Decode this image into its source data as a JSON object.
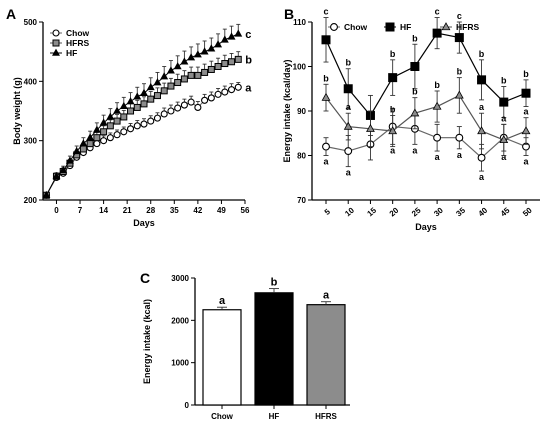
{
  "colors": {
    "chow": "#ffffff",
    "hf": "#000000",
    "hfrs": "#8c8c8c",
    "line_chow": "#666666",
    "line_hf": "#000000",
    "line_hfrs": "#555555"
  },
  "chart_data": [
    {
      "panel": "A",
      "type": "line",
      "xlabel": "Days",
      "ylabel": "Body weight (g)",
      "xlim": [
        -4,
        56
      ],
      "ylim": [
        200,
        500
      ],
      "xticks": [
        0,
        7,
        14,
        21,
        28,
        35,
        42,
        49,
        56
      ],
      "xtick_labels": [
        "0",
        "7",
        "14",
        "21",
        "28",
        "35",
        "42",
        "49",
        "56"
      ],
      "yticks": [
        200,
        300,
        400,
        500
      ],
      "ytick_labels": [
        "200",
        "300",
        "400",
        "500"
      ],
      "legend": [
        "Chow",
        "HFRS",
        "HF"
      ],
      "legend_position": "top-left",
      "x": [
        -3,
        0,
        2,
        4,
        6,
        8,
        10,
        12,
        14,
        16,
        18,
        20,
        22,
        24,
        26,
        28,
        30,
        32,
        34,
        36,
        38,
        40,
        42,
        44,
        46,
        48,
        50,
        52,
        54
      ],
      "series": [
        {
          "name": "Chow",
          "key": "chow",
          "marker": "circle",
          "label": "a",
          "values": [
            208,
            238,
            245,
            258,
            272,
            280,
            288,
            295,
            300,
            305,
            310,
            315,
            320,
            325,
            328,
            333,
            338,
            345,
            350,
            355,
            360,
            365,
            356,
            368,
            372,
            378,
            382,
            386,
            390
          ],
          "err": [
            4,
            5,
            5,
            6,
            6,
            7,
            7,
            7,
            8,
            8,
            8,
            8,
            9,
            9,
            9,
            9,
            9,
            10,
            10,
            10,
            10,
            10,
            10,
            10,
            10,
            10,
            10,
            10,
            8
          ]
        },
        {
          "name": "HFRS",
          "key": "hfrs",
          "marker": "square",
          "label": "b",
          "values": [
            208,
            240,
            248,
            262,
            276,
            286,
            295,
            305,
            315,
            325,
            333,
            340,
            350,
            356,
            362,
            370,
            376,
            384,
            392,
            398,
            404,
            410,
            410,
            415,
            420,
            425,
            430,
            433,
            437
          ],
          "err": [
            4,
            5,
            6,
            6,
            7,
            8,
            8,
            9,
            10,
            10,
            11,
            11,
            12,
            12,
            12,
            13,
            13,
            13,
            13,
            14,
            14,
            14,
            14,
            14,
            14,
            14,
            14,
            14,
            13
          ]
        },
        {
          "name": "HF",
          "key": "hf",
          "marker": "triangle",
          "label": "c",
          "values": [
            208,
            240,
            250,
            266,
            282,
            295,
            305,
            318,
            330,
            340,
            350,
            358,
            366,
            374,
            380,
            390,
            398,
            408,
            418,
            425,
            433,
            440,
            445,
            450,
            455,
            462,
            470,
            475,
            480
          ],
          "err": [
            4,
            6,
            7,
            8,
            9,
            10,
            11,
            12,
            13,
            14,
            14,
            15,
            15,
            16,
            16,
            16,
            17,
            17,
            17,
            18,
            18,
            18,
            18,
            18,
            18,
            18,
            18,
            18,
            16
          ]
        }
      ]
    },
    {
      "panel": "B",
      "type": "line",
      "xlabel": "Days",
      "ylabel": "Energy intake (kcal/day)",
      "ylim": [
        70,
        110
      ],
      "yticks": [
        70,
        80,
        90,
        100,
        110
      ],
      "ytick_labels": [
        "70",
        "80",
        "90",
        "100",
        "110"
      ],
      "categories": [
        "5",
        "10",
        "15",
        "20",
        "25",
        "30",
        "35",
        "40",
        "45",
        "50"
      ],
      "legend": [
        "Chow",
        "HF",
        "HFRS"
      ],
      "legend_position": "top",
      "series": [
        {
          "name": "Chow",
          "key": "chow",
          "marker": "circle",
          "values": [
            82,
            81,
            82.5,
            86.5,
            86,
            84,
            84,
            79.5,
            84,
            82
          ],
          "err": [
            2,
            3.5,
            3.5,
            4,
            3.5,
            3,
            2.5,
            3,
            3,
            2
          ],
          "labels": [
            "a",
            "a",
            "",
            "a",
            "a",
            "a",
            "a",
            "a",
            "a",
            "a"
          ]
        },
        {
          "name": "HF",
          "key": "hf",
          "marker": "square",
          "values": [
            106,
            95,
            89,
            97.5,
            100,
            107.5,
            106.5,
            97,
            92,
            94
          ],
          "err": [
            5,
            4.5,
            4.5,
            4,
            5,
            3.5,
            3.5,
            4.5,
            3.5,
            3
          ],
          "labels": [
            "c",
            "b",
            "",
            "b",
            "b",
            "c",
            "c",
            "b",
            "b",
            "b"
          ]
        },
        {
          "name": "HFRS",
          "key": "hfrs",
          "marker": "triangle",
          "values": [
            93,
            86.5,
            86,
            85.5,
            89.5,
            91,
            93.5,
            85.5,
            83.5,
            85.5
          ],
          "err": [
            3,
            3,
            4,
            3.5,
            3.5,
            3.5,
            4,
            4,
            3.5,
            3
          ],
          "labels": [
            "b",
            "a",
            "",
            "b",
            "b",
            "b",
            "b",
            "a",
            "a",
            "a"
          ]
        }
      ]
    },
    {
      "panel": "C",
      "type": "bar",
      "xlabel": "",
      "ylabel": "Energy intake (kcal)",
      "ylim": [
        0,
        3000
      ],
      "yticks": [
        0,
        1000,
        2000,
        3000
      ],
      "ytick_labels": [
        "0",
        "1000",
        "2000",
        "3000"
      ],
      "categories": [
        "Chow",
        "HF",
        "HFRS"
      ],
      "values": [
        2250,
        2650,
        2370
      ],
      "err": [
        60,
        100,
        70
      ],
      "labels": [
        "a",
        "b",
        "a"
      ],
      "fill_keys": [
        "chow",
        "hf",
        "hfrs"
      ]
    }
  ]
}
